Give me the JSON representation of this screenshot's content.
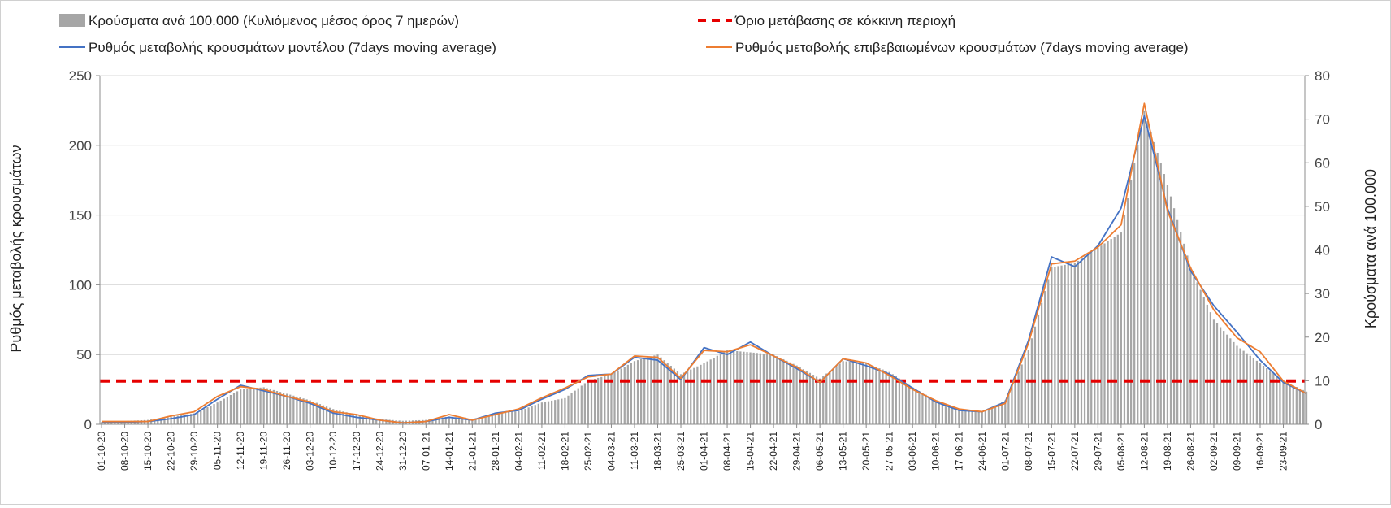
{
  "chart_data": {
    "type": "bar",
    "legend": {
      "bars": "Κρούσματα ανά 100.000 (Κυλιόμενος μέσος όρος 7 ημερών)",
      "threshold": "Όριο μετάβασης σε κόκκινη περιοχή",
      "model": "Ρυθμός μεταβολής κρουσμάτων μοντέλου (7days moving average)",
      "confirmed": "Ρυθμός μεταβολής επιβεβαιωμένων κρουσμάτων (7days moving average)"
    },
    "legend_placement": "top",
    "ylabel_left": "Ρυθμός μεταβολής κρουσμάτων",
    "ylabel_right": "Κρούσματα ανά 100.000",
    "ylim_left": [
      0,
      250
    ],
    "yticks_left": [
      "0",
      "50",
      "100",
      "150",
      "200",
      "250"
    ],
    "ylim_right": [
      0,
      80
    ],
    "yticks_right": [
      "0",
      "10",
      "20",
      "30",
      "40",
      "50",
      "60",
      "70",
      "80"
    ],
    "grid": true,
    "x_start": "2020-10-01",
    "x_end": "2021-09-30",
    "x_ticks": [
      "01-10-20",
      "08-10-20",
      "15-10-20",
      "22-10-20",
      "29-10-20",
      "05-11-20",
      "12-11-20",
      "19-11-20",
      "26-11-20",
      "03-12-20",
      "10-12-20",
      "17-12-20",
      "24-12-20",
      "31-12-20",
      "07-01-21",
      "14-01-21",
      "21-01-21",
      "28-01-21",
      "04-02-21",
      "11-02-21",
      "18-02-21",
      "25-02-21",
      "04-03-21",
      "11-03-21",
      "18-03-21",
      "25-03-21",
      "01-04-21",
      "08-04-21",
      "15-04-21",
      "22-04-21",
      "29-04-21",
      "06-05-21",
      "13-05-21",
      "20-05-21",
      "27-05-21",
      "03-06-21",
      "10-06-21",
      "17-06-21",
      "24-06-21",
      "01-07-21",
      "08-07-21",
      "15-07-21",
      "22-07-21",
      "29-07-21",
      "05-08-21",
      "12-08-21",
      "19-08-21",
      "26-08-21",
      "02-09-21",
      "09-09-21",
      "16-09-21",
      "23-09-21"
    ],
    "threshold_left": 31,
    "bars_right_axis": {
      "x": [
        "2020-10-01",
        "2020-10-15",
        "2020-10-29",
        "2020-11-05",
        "2020-11-12",
        "2020-11-19",
        "2020-11-26",
        "2020-12-03",
        "2020-12-10",
        "2020-12-17",
        "2020-12-24",
        "2020-12-31",
        "2021-01-07",
        "2021-01-14",
        "2021-01-21",
        "2021-01-28",
        "2021-02-04",
        "2021-02-11",
        "2021-02-18",
        "2021-02-25",
        "2021-03-04",
        "2021-03-11",
        "2021-03-18",
        "2021-03-25",
        "2021-04-01",
        "2021-04-08",
        "2021-04-15",
        "2021-04-22",
        "2021-04-29",
        "2021-05-06",
        "2021-05-13",
        "2021-05-20",
        "2021-05-27",
        "2021-06-03",
        "2021-06-10",
        "2021-06-17",
        "2021-06-24",
        "2021-07-01",
        "2021-07-08",
        "2021-07-15",
        "2021-07-22",
        "2021-07-29",
        "2021-08-05",
        "2021-08-12",
        "2021-08-19",
        "2021-08-26",
        "2021-09-02",
        "2021-09-09",
        "2021-09-16",
        "2021-09-23",
        "2021-09-30"
      ],
      "y": [
        0.5,
        1.0,
        2.5,
        5.0,
        8.0,
        8.5,
        7.0,
        5.5,
        3.5,
        2.2,
        1.2,
        0.8,
        1.0,
        1.8,
        1.2,
        2.5,
        3.0,
        5.0,
        6.0,
        10.0,
        11.5,
        14.5,
        16.0,
        11.5,
        14.0,
        17.0,
        16.5,
        16.0,
        13.5,
        10.5,
        14.5,
        14.0,
        12.0,
        8.5,
        5.5,
        3.5,
        2.8,
        5.5,
        17.0,
        36.0,
        37.0,
        40.5,
        44.0,
        72.0,
        55.0,
        36.0,
        24.0,
        18.0,
        14.0,
        10.0,
        7.5
      ]
    },
    "series": [
      {
        "name": "Ρυθμός μεταβολής κρουσμάτων μοντέλου (7days moving average)",
        "axis": "left",
        "x": [
          "2020-10-01",
          "2020-10-15",
          "2020-10-22",
          "2020-10-29",
          "2020-11-05",
          "2020-11-12",
          "2020-11-19",
          "2020-11-26",
          "2020-12-03",
          "2020-12-10",
          "2020-12-17",
          "2020-12-24",
          "2020-12-31",
          "2021-01-07",
          "2021-01-14",
          "2021-01-21",
          "2021-01-28",
          "2021-02-04",
          "2021-02-11",
          "2021-02-18",
          "2021-02-25",
          "2021-03-04",
          "2021-03-11",
          "2021-03-18",
          "2021-03-25",
          "2021-04-01",
          "2021-04-08",
          "2021-04-15",
          "2021-04-22",
          "2021-04-29",
          "2021-05-06",
          "2021-05-13",
          "2021-05-20",
          "2021-05-27",
          "2021-06-03",
          "2021-06-10",
          "2021-06-17",
          "2021-06-24",
          "2021-07-01",
          "2021-07-08",
          "2021-07-15",
          "2021-07-22",
          "2021-07-29",
          "2021-08-05",
          "2021-08-12",
          "2021-08-19",
          "2021-08-26",
          "2021-09-02",
          "2021-09-09",
          "2021-09-16",
          "2021-09-23",
          "2021-09-30"
        ],
        "y": [
          1,
          2,
          4,
          7,
          18,
          28,
          24,
          20,
          15,
          8,
          5,
          3,
          1,
          2,
          5,
          3,
          8,
          10,
          18,
          25,
          35,
          36,
          48,
          46,
          32,
          55,
          50,
          59,
          49,
          40,
          30,
          47,
          42,
          36,
          26,
          16,
          10,
          9,
          16,
          60,
          120,
          113,
          128,
          155,
          221,
          155,
          110,
          85,
          66,
          46,
          30,
          22
        ]
      },
      {
        "name": "Ρυθμός μεταβολής επιβεβαιωμένων κρουσμάτων (7days moving average)",
        "axis": "left",
        "x": [
          "2020-10-01",
          "2020-10-15",
          "2020-10-22",
          "2020-10-29",
          "2020-11-05",
          "2020-11-12",
          "2020-11-19",
          "2020-11-26",
          "2020-12-03",
          "2020-12-10",
          "2020-12-17",
          "2020-12-24",
          "2020-12-31",
          "2021-01-07",
          "2021-01-14",
          "2021-01-21",
          "2021-01-28",
          "2021-02-04",
          "2021-02-11",
          "2021-02-18",
          "2021-02-25",
          "2021-03-04",
          "2021-03-11",
          "2021-03-18",
          "2021-03-25",
          "2021-04-01",
          "2021-04-08",
          "2021-04-15",
          "2021-04-22",
          "2021-04-29",
          "2021-05-06",
          "2021-05-13",
          "2021-05-20",
          "2021-05-27",
          "2021-06-03",
          "2021-06-10",
          "2021-06-17",
          "2021-06-24",
          "2021-07-01",
          "2021-07-08",
          "2021-07-15",
          "2021-07-22",
          "2021-07-29",
          "2021-08-05",
          "2021-08-12",
          "2021-08-19",
          "2021-08-26",
          "2021-09-02",
          "2021-09-09",
          "2021-09-16",
          "2021-09-23",
          "2021-09-30"
        ],
        "y": [
          2,
          2,
          6,
          9,
          20,
          27,
          25,
          20,
          16,
          9,
          7,
          3,
          1,
          2,
          7,
          3,
          7,
          11,
          19,
          26,
          34,
          36,
          49,
          48,
          33,
          53,
          52,
          57,
          49,
          41,
          30,
          47,
          44,
          35,
          25,
          17,
          11,
          9,
          15,
          58,
          115,
          117,
          127,
          143,
          230,
          153,
          112,
          82,
          62,
          52,
          31,
          22
        ]
      }
    ]
  }
}
